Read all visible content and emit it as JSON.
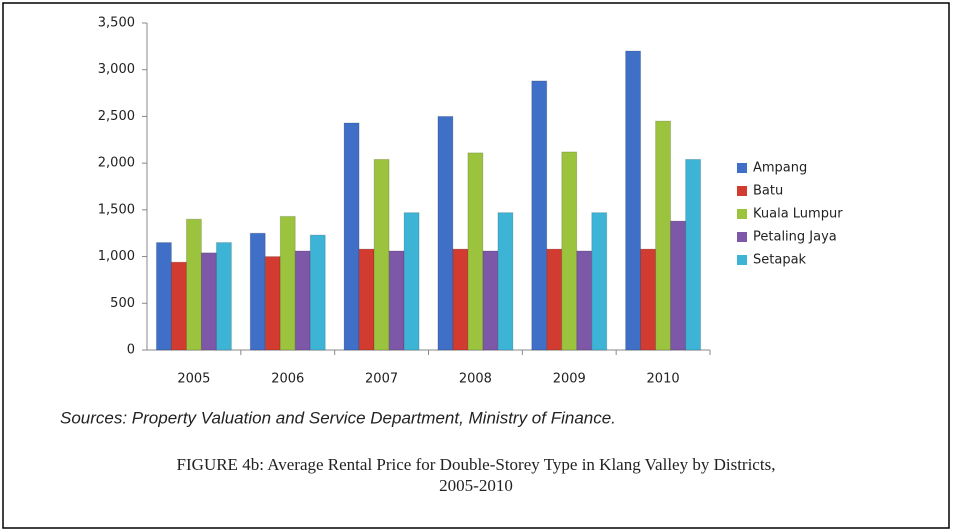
{
  "chart_data": {
    "type": "bar",
    "categories": [
      "2005",
      "2006",
      "2007",
      "2008",
      "2009",
      "2010"
    ],
    "series": [
      {
        "name": "Ampang",
        "color": "#3f6fc6",
        "values": [
          1150,
          1250,
          2430,
          2500,
          2880,
          3200
        ]
      },
      {
        "name": "Batu",
        "color": "#d23b30",
        "values": [
          940,
          1000,
          1080,
          1080,
          1080,
          1080
        ]
      },
      {
        "name": "Kuala Lumpur",
        "color": "#9cc33d",
        "values": [
          1400,
          1430,
          2040,
          2110,
          2120,
          2450
        ]
      },
      {
        "name": "Petaling Jaya",
        "color": "#7d57a8",
        "values": [
          1040,
          1060,
          1060,
          1060,
          1060,
          1380
        ]
      },
      {
        "name": "Setapak",
        "color": "#3db4d6",
        "values": [
          1150,
          1230,
          1470,
          1470,
          1470,
          2040
        ]
      }
    ],
    "ylim": [
      0,
      3500
    ],
    "yticks": [
      0,
      500,
      {
        "value": 1000,
        "label": "1,000"
      },
      {
        "value": 1500,
        "label": "1,500"
      },
      {
        "value": 2000,
        "label": "2,000"
      },
      {
        "value": 2500,
        "label": "2,500"
      },
      {
        "value": 3000,
        "label": "3,000"
      },
      {
        "value": 3500,
        "label": "3,500"
      }
    ],
    "grid": false,
    "legend": "right",
    "source": "Sources: Property Valuation and Service Department, Ministry of Finance.",
    "caption": [
      "FIGURE 4b: Average Rental Price for Double-Storey Type in Klang Valley by Districts,",
      "2005-2010"
    ]
  }
}
